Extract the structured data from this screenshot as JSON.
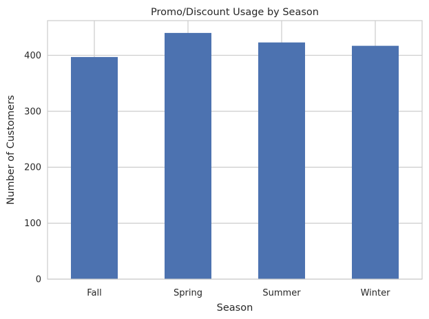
{
  "chart_data": {
    "type": "bar",
    "title": "Promo/Discount Usage by Season",
    "xlabel": "Season",
    "ylabel": "Number of Customers",
    "categories": [
      "Fall",
      "Spring",
      "Summer",
      "Winter"
    ],
    "values": [
      397,
      440,
      423,
      417
    ],
    "ylim": [
      0,
      462
    ],
    "yticks": [
      0,
      100,
      200,
      300,
      400
    ],
    "grid": true,
    "bar_color": "#4c72b0",
    "grid_color": "#cccccc",
    "background": "#ffffff"
  }
}
